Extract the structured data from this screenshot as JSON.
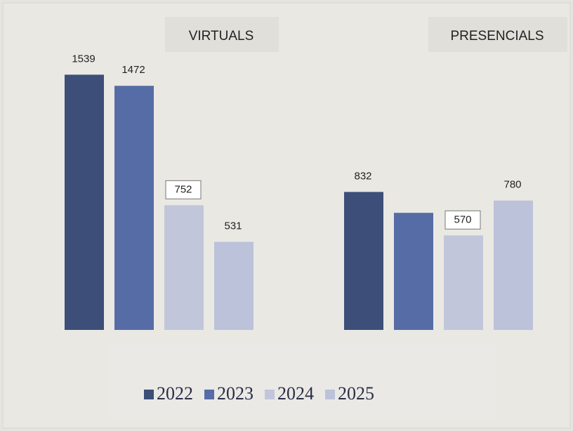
{
  "chart_data": {
    "type": "bar",
    "categories": [
      "VIRTUALS",
      "PRESENCIALS"
    ],
    "series": [
      {
        "name": "2022",
        "color": "#3d4e78",
        "values": [
          1539,
          832
        ]
      },
      {
        "name": "2023",
        "color": "#556ca6",
        "values": [
          1472,
          706
        ],
        "value_labels": [
          "1472",
          null
        ]
      },
      {
        "name": "2024",
        "color": "#c1c6da",
        "values": [
          752,
          570
        ]
      },
      {
        "name": "2025",
        "color": "#bcc2d9",
        "values": [
          531,
          780
        ]
      }
    ],
    "ylim": [
      0,
      1600
    ]
  }
}
